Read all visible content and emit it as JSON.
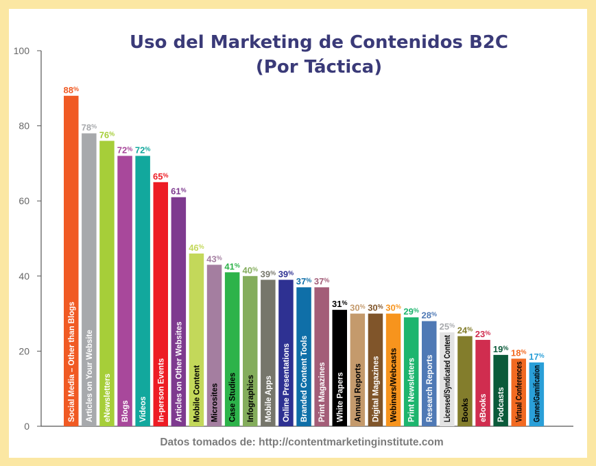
{
  "chart_data": {
    "type": "bar",
    "title": "Uso del Marketing de Contenidos B2C",
    "subtitle": "(Por Táctica)",
    "ylim": [
      0,
      100
    ],
    "yticks": [
      0,
      20,
      40,
      60,
      80,
      100
    ],
    "source": "Datos tomados de: http://contentmarketinginstitute.com",
    "grid": false,
    "categories": [
      "Social Media – Other than Blogs",
      "Articles on Your Website",
      "eNewsletters",
      "Blogs",
      "Videos",
      "In-person Events",
      "Articles on Other Websites",
      "Mobile Content",
      "Microsites",
      "Case Studies",
      "Infographics",
      "Mobile Apps",
      "Online Presentations",
      "Branded Content Tools",
      "Print Magazines",
      "White Papers",
      "Annual Reports",
      "Digital Magazines",
      "Webinars/Webcasts",
      "Print Newsletters",
      "Research Reports",
      "Licensed/Syndicated Content",
      "Books",
      "eBooks",
      "Podcasts",
      "Virtual Conferences",
      "Games/Gamification"
    ],
    "values": [
      88,
      78,
      76,
      72,
      72,
      65,
      61,
      46,
      43,
      41,
      40,
      39,
      39,
      37,
      37,
      31,
      30,
      30,
      30,
      29,
      28,
      25,
      24,
      23,
      19,
      18,
      17
    ],
    "colors": [
      "#f05a23",
      "#a7a9ac",
      "#a6ce39",
      "#a8489b",
      "#12a89d",
      "#ed1c24",
      "#7e3a8f",
      "#c3d85a",
      "#a47ea0",
      "#2db34a",
      "#84ad5c",
      "#76766b",
      "#2e3192",
      "#0f6fa8",
      "#a35d78",
      "#000000",
      "#c49a6c",
      "#80552a",
      "#f7941d",
      "#1db56e",
      "#4f79b5",
      "#e3e3e3",
      "#837d2c",
      "#d02d4f",
      "#0b5a3a",
      "#f26a21",
      "#2a9fd8"
    ],
    "label_text_colors": [
      "#ffffff",
      "#ffffff",
      "#ffffff",
      "#ffffff",
      "#ffffff",
      "#ffffff",
      "#ffffff",
      "#000000",
      "#000000",
      "#000000",
      "#000000",
      "#ffffff",
      "#ffffff",
      "#ffffff",
      "#ffffff",
      "#ffffff",
      "#000000",
      "#ffffff",
      "#000000",
      "#ffffff",
      "#ffffff",
      "#000000",
      "#000000",
      "#ffffff",
      "#ffffff",
      "#000000",
      "#000000"
    ],
    "value_label_colors": [
      "#f05a23",
      "#a7a9ac",
      "#a6ce39",
      "#a8489b",
      "#12a89d",
      "#ed1c24",
      "#7e3a8f",
      "#c3d85a",
      "#a47ea0",
      "#2db34a",
      "#84ad5c",
      "#76766b",
      "#2e3192",
      "#0f6fa8",
      "#a35d78",
      "#000000",
      "#c49a6c",
      "#80552a",
      "#f7941d",
      "#1db56e",
      "#4f79b5",
      "#a7a9ac",
      "#837d2c",
      "#d02d4f",
      "#0b5a3a",
      "#f26a21",
      "#2a9fd8"
    ]
  }
}
